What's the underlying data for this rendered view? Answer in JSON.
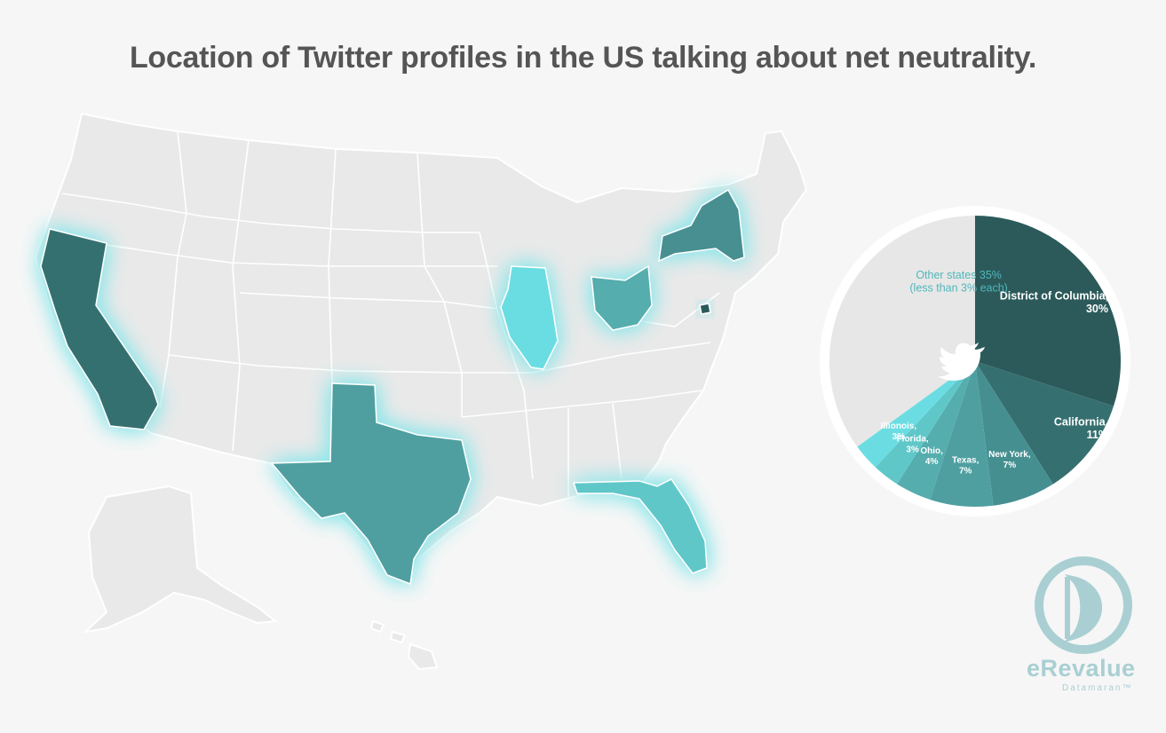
{
  "title": "Location of Twitter profiles in the US talking about net neutrality.",
  "colors": {
    "background": "#f6f6f6",
    "land": "#e9e9e9",
    "district_of_columbia": "#2c5a5a",
    "california": "#366f6f",
    "new_york": "#468f91",
    "texas": "#4f9fa1",
    "ohio": "#55adad",
    "florida": "#60c7c9",
    "illinois": "#6bdde2",
    "other": "#e7e7e7",
    "glow": "#8ee6ea"
  },
  "map": {
    "highlighted_states": [
      "California",
      "Texas",
      "Illinois",
      "Ohio",
      "New York",
      "Florida",
      "District of Columbia"
    ]
  },
  "chart_data": {
    "type": "pie",
    "icon": "twitter-bird-icon",
    "slices": [
      {
        "name": "District of Columbia",
        "label": "District of Columbia,",
        "value_label": "30%",
        "value": 30,
        "color": "#2c5a5a"
      },
      {
        "name": "California",
        "label": "California,",
        "value_label": "11%",
        "value": 11,
        "color": "#366f6f"
      },
      {
        "name": "New York",
        "label": "New York,",
        "value_label": "7%",
        "value": 7,
        "color": "#468f91"
      },
      {
        "name": "Texas",
        "label": "Texas,",
        "value_label": "7%",
        "value": 7,
        "color": "#4f9fa1"
      },
      {
        "name": "Ohio",
        "label": "Ohio,",
        "value_label": "4%",
        "value": 4,
        "color": "#55adad"
      },
      {
        "name": "Florida",
        "label": "Florida,",
        "value_label": "3%",
        "value": 3,
        "color": "#60c7c9"
      },
      {
        "name": "Illinois",
        "label": "Illionois,",
        "value_label": "3%",
        "value": 3,
        "color": "#6bdde2"
      },
      {
        "name": "Other states",
        "label": "Other states 35%",
        "value_label": "(less than 3% each)",
        "value": 35,
        "color": "#e7e7e7"
      }
    ]
  },
  "brand": {
    "name": "eRevalue",
    "tagline": "Datamaran™"
  }
}
